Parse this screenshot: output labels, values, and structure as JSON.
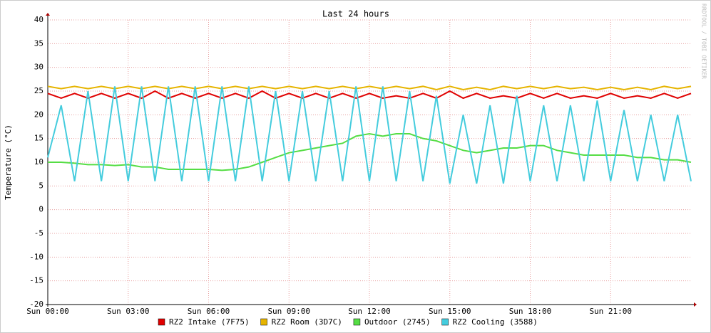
{
  "chart_data": {
    "type": "line",
    "title": "Last 24 hours",
    "y_label": "Temperature (°C)",
    "watermark": "RRDTOOL / TOBI OETIKER",
    "xlim": [
      0,
      24
    ],
    "ylim": [
      -20,
      40
    ],
    "grid": true,
    "xticks": [
      {
        "value": 0,
        "label": "Sun 00:00"
      },
      {
        "value": 3,
        "label": "Sun 03:00"
      },
      {
        "value": 6,
        "label": "Sun 06:00"
      },
      {
        "value": 9,
        "label": "Sun 09:00"
      },
      {
        "value": 12,
        "label": "Sun 12:00"
      },
      {
        "value": 15,
        "label": "Sun 15:00"
      },
      {
        "value": 18,
        "label": "Sun 18:00"
      },
      {
        "value": 21,
        "label": "Sun 21:00"
      }
    ],
    "yticks": [
      -20,
      -15,
      -10,
      -5,
      0,
      5,
      10,
      15,
      20,
      25,
      30,
      35,
      40
    ],
    "x": [
      0,
      0.5,
      1,
      1.5,
      2,
      2.5,
      3,
      3.5,
      4,
      4.5,
      5,
      5.5,
      6,
      6.5,
      7,
      7.5,
      8,
      8.5,
      9,
      9.5,
      10,
      10.5,
      11,
      11.5,
      12,
      12.5,
      13,
      13.5,
      14,
      14.5,
      15,
      15.5,
      16,
      16.5,
      17,
      17.5,
      18,
      18.5,
      19,
      19.5,
      20,
      20.5,
      21,
      21.5,
      22,
      22.5,
      23,
      23.5,
      24
    ],
    "series": [
      {
        "name": "RZ2 Intake (7F75)",
        "color": "#e00000",
        "values": [
          24.5,
          23.5,
          24.5,
          23.5,
          24.5,
          23.5,
          24.5,
          23.5,
          25,
          23.5,
          24.5,
          23.5,
          24.5,
          23.5,
          24.5,
          23.5,
          25,
          23.5,
          24.5,
          23.5,
          24.5,
          23.5,
          24.5,
          23.5,
          24.5,
          23.5,
          24,
          23.5,
          24.5,
          23.5,
          25,
          23.5,
          24.5,
          23.5,
          24,
          23.5,
          24.5,
          23.5,
          24.5,
          23.5,
          24,
          23.5,
          24.5,
          23.5,
          24,
          23.5,
          24.5,
          23.5,
          24.5
        ]
      },
      {
        "name": "RZ2 Room (3D7C)",
        "color": "#e6b400",
        "values": [
          26,
          25.5,
          26,
          25.5,
          26,
          25.5,
          26,
          25.5,
          26,
          25.5,
          26,
          25.5,
          26,
          25.5,
          26,
          25.5,
          26,
          25.5,
          26,
          25.5,
          26,
          25.5,
          26,
          25.5,
          26,
          25.5,
          26,
          25.5,
          26,
          25.3,
          26,
          25.3,
          25.8,
          25.3,
          26,
          25.5,
          26,
          25.5,
          26,
          25.5,
          25.8,
          25.3,
          25.8,
          25.3,
          25.8,
          25.3,
          26,
          25.5,
          26
        ]
      },
      {
        "name": "Outdoor (2745)",
        "color": "#55dd44",
        "values": [
          10,
          10,
          9.8,
          9.5,
          9.5,
          9.3,
          9.5,
          9,
          9,
          8.5,
          8.5,
          8.5,
          8.5,
          8.3,
          8.5,
          9,
          10,
          11,
          12,
          12.5,
          13,
          13.5,
          14,
          15.5,
          16,
          15.5,
          16,
          16,
          15,
          14.5,
          13.5,
          12.5,
          12,
          12.5,
          13,
          13,
          13.5,
          13.5,
          12.5,
          12,
          11.5,
          11.5,
          11.5,
          11.5,
          11,
          11,
          10.5,
          10.5,
          10
        ]
      },
      {
        "name": "RZ2 Cooling (3588)",
        "color": "#44ccdd",
        "values": [
          11,
          22,
          6,
          25,
          6,
          26,
          6,
          26,
          6,
          26,
          6,
          26,
          6,
          26,
          6,
          26,
          6,
          25,
          6,
          25,
          6,
          25,
          6,
          26,
          6,
          26,
          6,
          25,
          6,
          24,
          5.5,
          20,
          5.5,
          22,
          5.5,
          24,
          6,
          22,
          6,
          22,
          6,
          23,
          6,
          21,
          6,
          20,
          6,
          20,
          6
        ]
      }
    ]
  }
}
